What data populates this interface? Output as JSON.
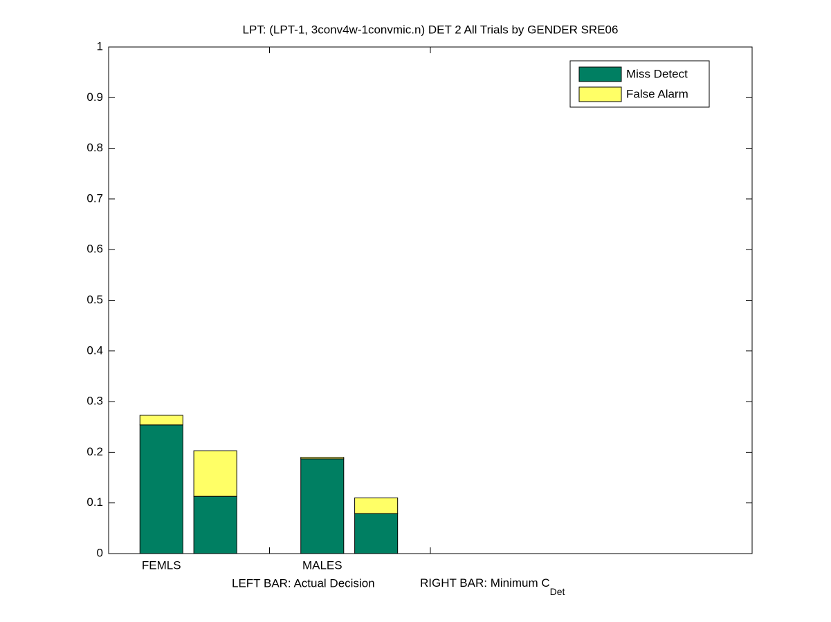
{
  "chart_data": {
    "type": "stacked-bar-pair",
    "title": "LPT: (LPT-1, 3conv4w-1convmic.n) DET 2 All Trials by GENDER SRE06",
    "categories": [
      "FEMLS",
      "MALES",
      null,
      null
    ],
    "series": [
      {
        "name": "Miss Detect",
        "color": "#007f62",
        "values": [
          [
            0.254,
            0.113
          ],
          [
            0.187,
            0.079
          ],
          null,
          null
        ]
      },
      {
        "name": "False Alarm",
        "color": "#ffff66",
        "values": [
          [
            0.019,
            0.09
          ],
          [
            0.003,
            0.031
          ],
          null,
          null
        ]
      }
    ],
    "xlabel": {
      "left": "LEFT BAR: Actual Decision",
      "right": "RIGHT BAR: Minimum C",
      "sub": "Det"
    },
    "ylim": [
      0,
      1
    ],
    "yticks": [
      0,
      0.1,
      0.2,
      0.3,
      0.4,
      0.5,
      0.6,
      0.7,
      0.8,
      0.9,
      1
    ],
    "legend": "top-right"
  }
}
